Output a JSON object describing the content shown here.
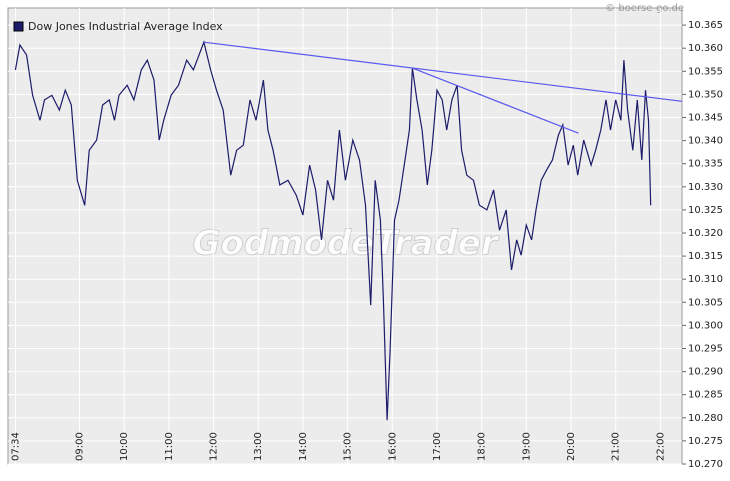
{
  "chart_data": {
    "type": "line",
    "title": "Dow Jones Industrial Average Index",
    "source": "© boerse-go.de",
    "watermark": "GodmodeTrader",
    "x": [
      "07:34",
      "07:40",
      "07:49",
      "07:57",
      "08:07",
      "08:13",
      "08:23",
      "08:33",
      "08:41",
      "08:49",
      "08:57",
      "09:07",
      "09:13",
      "09:23",
      "09:31",
      "09:40",
      "09:47",
      "09:53",
      "10:04",
      "10:13",
      "10:23",
      "10:31",
      "10:40",
      "10:47",
      "10:53",
      "11:03",
      "11:13",
      "11:24",
      "11:33",
      "11:47",
      "11:56",
      "12:04",
      "12:13",
      "12:23",
      "12:31",
      "12:40",
      "12:49",
      "12:57",
      "13:07",
      "13:13",
      "13:20",
      "13:29",
      "13:40",
      "13:51",
      "14:00",
      "14:09",
      "14:17",
      "14:25",
      "14:33",
      "14:41",
      "14:49",
      "14:57",
      "15:07",
      "15:16",
      "15:24",
      "15:31",
      "15:37",
      "15:44",
      "15:48",
      "15:53",
      "15:57",
      "16:03",
      "16:09",
      "16:17",
      "16:23",
      "16:27",
      "16:33",
      "16:40",
      "16:47",
      "16:53",
      "17:00",
      "17:07",
      "17:13",
      "17:20",
      "17:27",
      "17:33",
      "17:40",
      "17:49",
      "17:57",
      "18:07",
      "18:16",
      "18:24",
      "18:33",
      "18:40",
      "18:47",
      "18:53",
      "19:00",
      "19:07",
      "19:13",
      "19:20",
      "19:27",
      "19:35",
      "19:43",
      "19:49",
      "19:56",
      "20:03",
      "20:09",
      "20:17",
      "20:27",
      "20:33",
      "20:40",
      "20:47",
      "20:53",
      "21:00",
      "21:07",
      "21:11",
      "21:16",
      "21:23",
      "21:29",
      "21:35",
      "21:40",
      "21:44",
      "21:47"
    ],
    "series": [
      {
        "name": "Dow Jones Industrial Average Index",
        "color": "#1c1c6b",
        "values": [
          10.3553,
          10.3607,
          10.3585,
          10.3498,
          10.3444,
          10.3488,
          10.3498,
          10.3466,
          10.3509,
          10.3477,
          10.3314,
          10.326,
          10.3379,
          10.3401,
          10.3477,
          10.3488,
          10.3444,
          10.3498,
          10.352,
          10.3488,
          10.3553,
          10.3574,
          10.3531,
          10.3401,
          10.3444,
          10.3498,
          10.352,
          10.3574,
          10.3553,
          10.3613,
          10.3553,
          10.3509,
          10.3466,
          10.3325,
          10.3379,
          10.339,
          10.3488,
          10.3444,
          10.3531,
          10.3423,
          10.3379,
          10.3304,
          10.3314,
          10.3282,
          10.3239,
          10.3347,
          10.3293,
          10.3185,
          10.3314,
          10.3271,
          10.3423,
          10.3314,
          10.3401,
          10.3358,
          10.326,
          10.3044,
          10.3314,
          10.3228,
          10.3055,
          10.2795,
          10.2946,
          10.3228,
          10.3271,
          10.3358,
          10.3423,
          10.3557,
          10.3488,
          10.3423,
          10.3304,
          10.3379,
          10.3509,
          10.3488,
          10.3423,
          10.3488,
          10.352,
          10.3379,
          10.3325,
          10.3314,
          10.326,
          10.325,
          10.3293,
          10.3206,
          10.325,
          10.312,
          10.3185,
          10.3152,
          10.3217,
          10.3185,
          10.325,
          10.3314,
          10.3336,
          10.3358,
          10.3412,
          10.3434,
          10.3347,
          10.339,
          10.3325,
          10.3401,
          10.3347,
          10.3379,
          10.3423,
          10.3488,
          10.3423,
          10.3488,
          10.3444,
          10.3574,
          10.3466,
          10.3379,
          10.3488,
          10.3358,
          10.3509,
          10.3444,
          10.326
        ]
      }
    ],
    "trend_lines": [
      {
        "color": "#5a5aee",
        "x": [
          "11:47",
          "22:29"
        ],
        "y": [
          10.3613,
          10.3485
        ]
      },
      {
        "color": "#5a5aee",
        "x": [
          "16:27",
          "20:10"
        ],
        "y": [
          10.3557,
          10.3416
        ]
      }
    ],
    "xlim": [
      "07:24",
      "22:29"
    ],
    "xticks": [
      "07:34",
      "09:00",
      "10:00",
      "11:00",
      "12:00",
      "13:00",
      "14:00",
      "15:00",
      "16:00",
      "17:00",
      "18:00",
      "19:00",
      "20:00",
      "21:00",
      "22:00"
    ],
    "ylim": [
      10.27,
      10.3687
    ],
    "yticks": [
      {
        "value": 10.27,
        "label": "10.270"
      },
      10.275,
      {
        "value": 10.28,
        "label": "10.280"
      },
      10.285,
      {
        "value": 10.29,
        "label": "10.290"
      },
      10.295,
      {
        "value": 10.3,
        "label": "10.300"
      },
      10.305,
      {
        "value": 10.31,
        "label": "10.310"
      },
      10.315,
      {
        "value": 10.32,
        "label": "10.320"
      },
      10.325,
      {
        "value": 10.33,
        "label": "10.330"
      },
      10.335,
      {
        "value": 10.34,
        "label": "10.340"
      },
      10.345,
      {
        "value": 10.35,
        "label": "10.350"
      },
      10.355,
      {
        "value": 10.36,
        "label": "10.360"
      },
      10.365
    ],
    "grid": true
  }
}
